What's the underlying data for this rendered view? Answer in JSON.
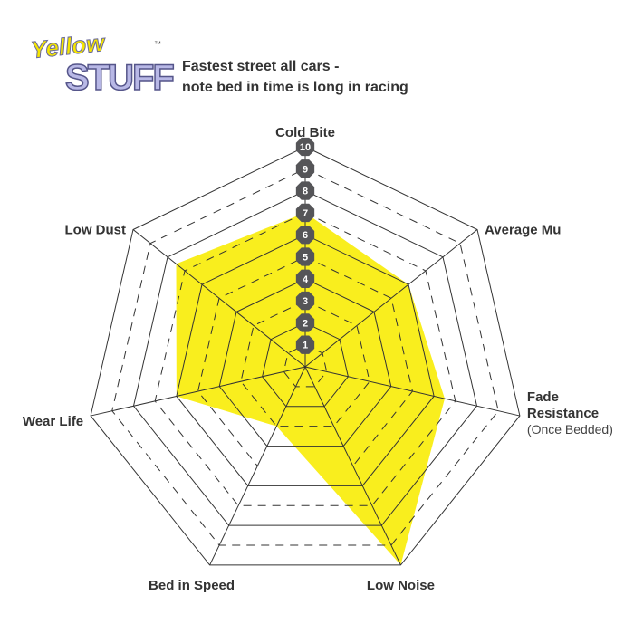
{
  "logo": {
    "line1": "Yellow",
    "line2": "STUFF",
    "tm": "™"
  },
  "subtitle": [
    "Fastest street all cars -",
    "note bed in time is long in racing"
  ],
  "chart_data": {
    "type": "radar",
    "axes": [
      "Cold Bite",
      "Average Mu",
      "Fade Resistance",
      "Low Noise",
      "Bed in Speed",
      "Wear Life",
      "Low Dust"
    ],
    "axis_sublabels": {
      "Fade Resistance": "(Once Bedded)"
    },
    "values": [
      7,
      6,
      6.5,
      10,
      3,
      6,
      7.5
    ],
    "scale": [
      1,
      2,
      3,
      4,
      5,
      6,
      7,
      8,
      9,
      10
    ],
    "range": [
      0,
      10
    ],
    "fill_color": "#f9ee1e",
    "grid_color": "#333333",
    "tick_badge_color": "#555558"
  }
}
